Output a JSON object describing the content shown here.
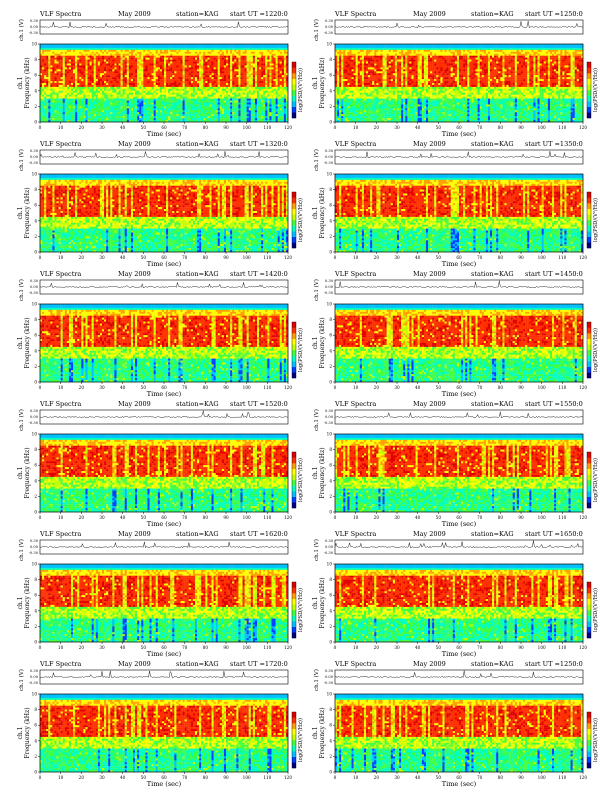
{
  "chart_data": {
    "type": "heatmap",
    "panel_common": {
      "title_label": "VLF Spectra",
      "date": "May 2009",
      "station": "station=KAG",
      "start_prefix": "start  UT =",
      "ylabel_top": "ch.1 (V)",
      "ylabel_main": "ch.1\nFrequency (kHz)",
      "xlabel": "Time (sec)",
      "colorbar_label": "log(PSD/(V²/Hz))",
      "xticks": [
        0,
        10,
        20,
        30,
        40,
        50,
        60,
        70,
        80,
        90,
        100,
        110,
        120
      ],
      "yticks": [
        0,
        2,
        4,
        6,
        8,
        10
      ],
      "top_yticks": [
        "0.30",
        "0.00",
        "-0.30"
      ],
      "xlim": [
        0,
        120
      ],
      "ylim": [
        0,
        10
      ],
      "colors": [
        "#000080",
        "#0040ff",
        "#00c0ff",
        "#00ffc0",
        "#40ff40",
        "#c0ff00",
        "#ffff00",
        "#ffa000",
        "#ff3000",
        "#e00000"
      ]
    },
    "panels": [
      {
        "start_ut": "1220:0"
      },
      {
        "start_ut": "1250:0"
      },
      {
        "start_ut": "1320:0"
      },
      {
        "start_ut": "1350:0"
      },
      {
        "start_ut": "1420:0"
      },
      {
        "start_ut": "1450:0"
      },
      {
        "start_ut": "1520:0"
      },
      {
        "start_ut": "1550:0"
      },
      {
        "start_ut": "1620:0"
      },
      {
        "start_ut": "1650:0"
      },
      {
        "start_ut": "1720:0"
      },
      {
        "start_ut": "1250:0"
      }
    ]
  }
}
